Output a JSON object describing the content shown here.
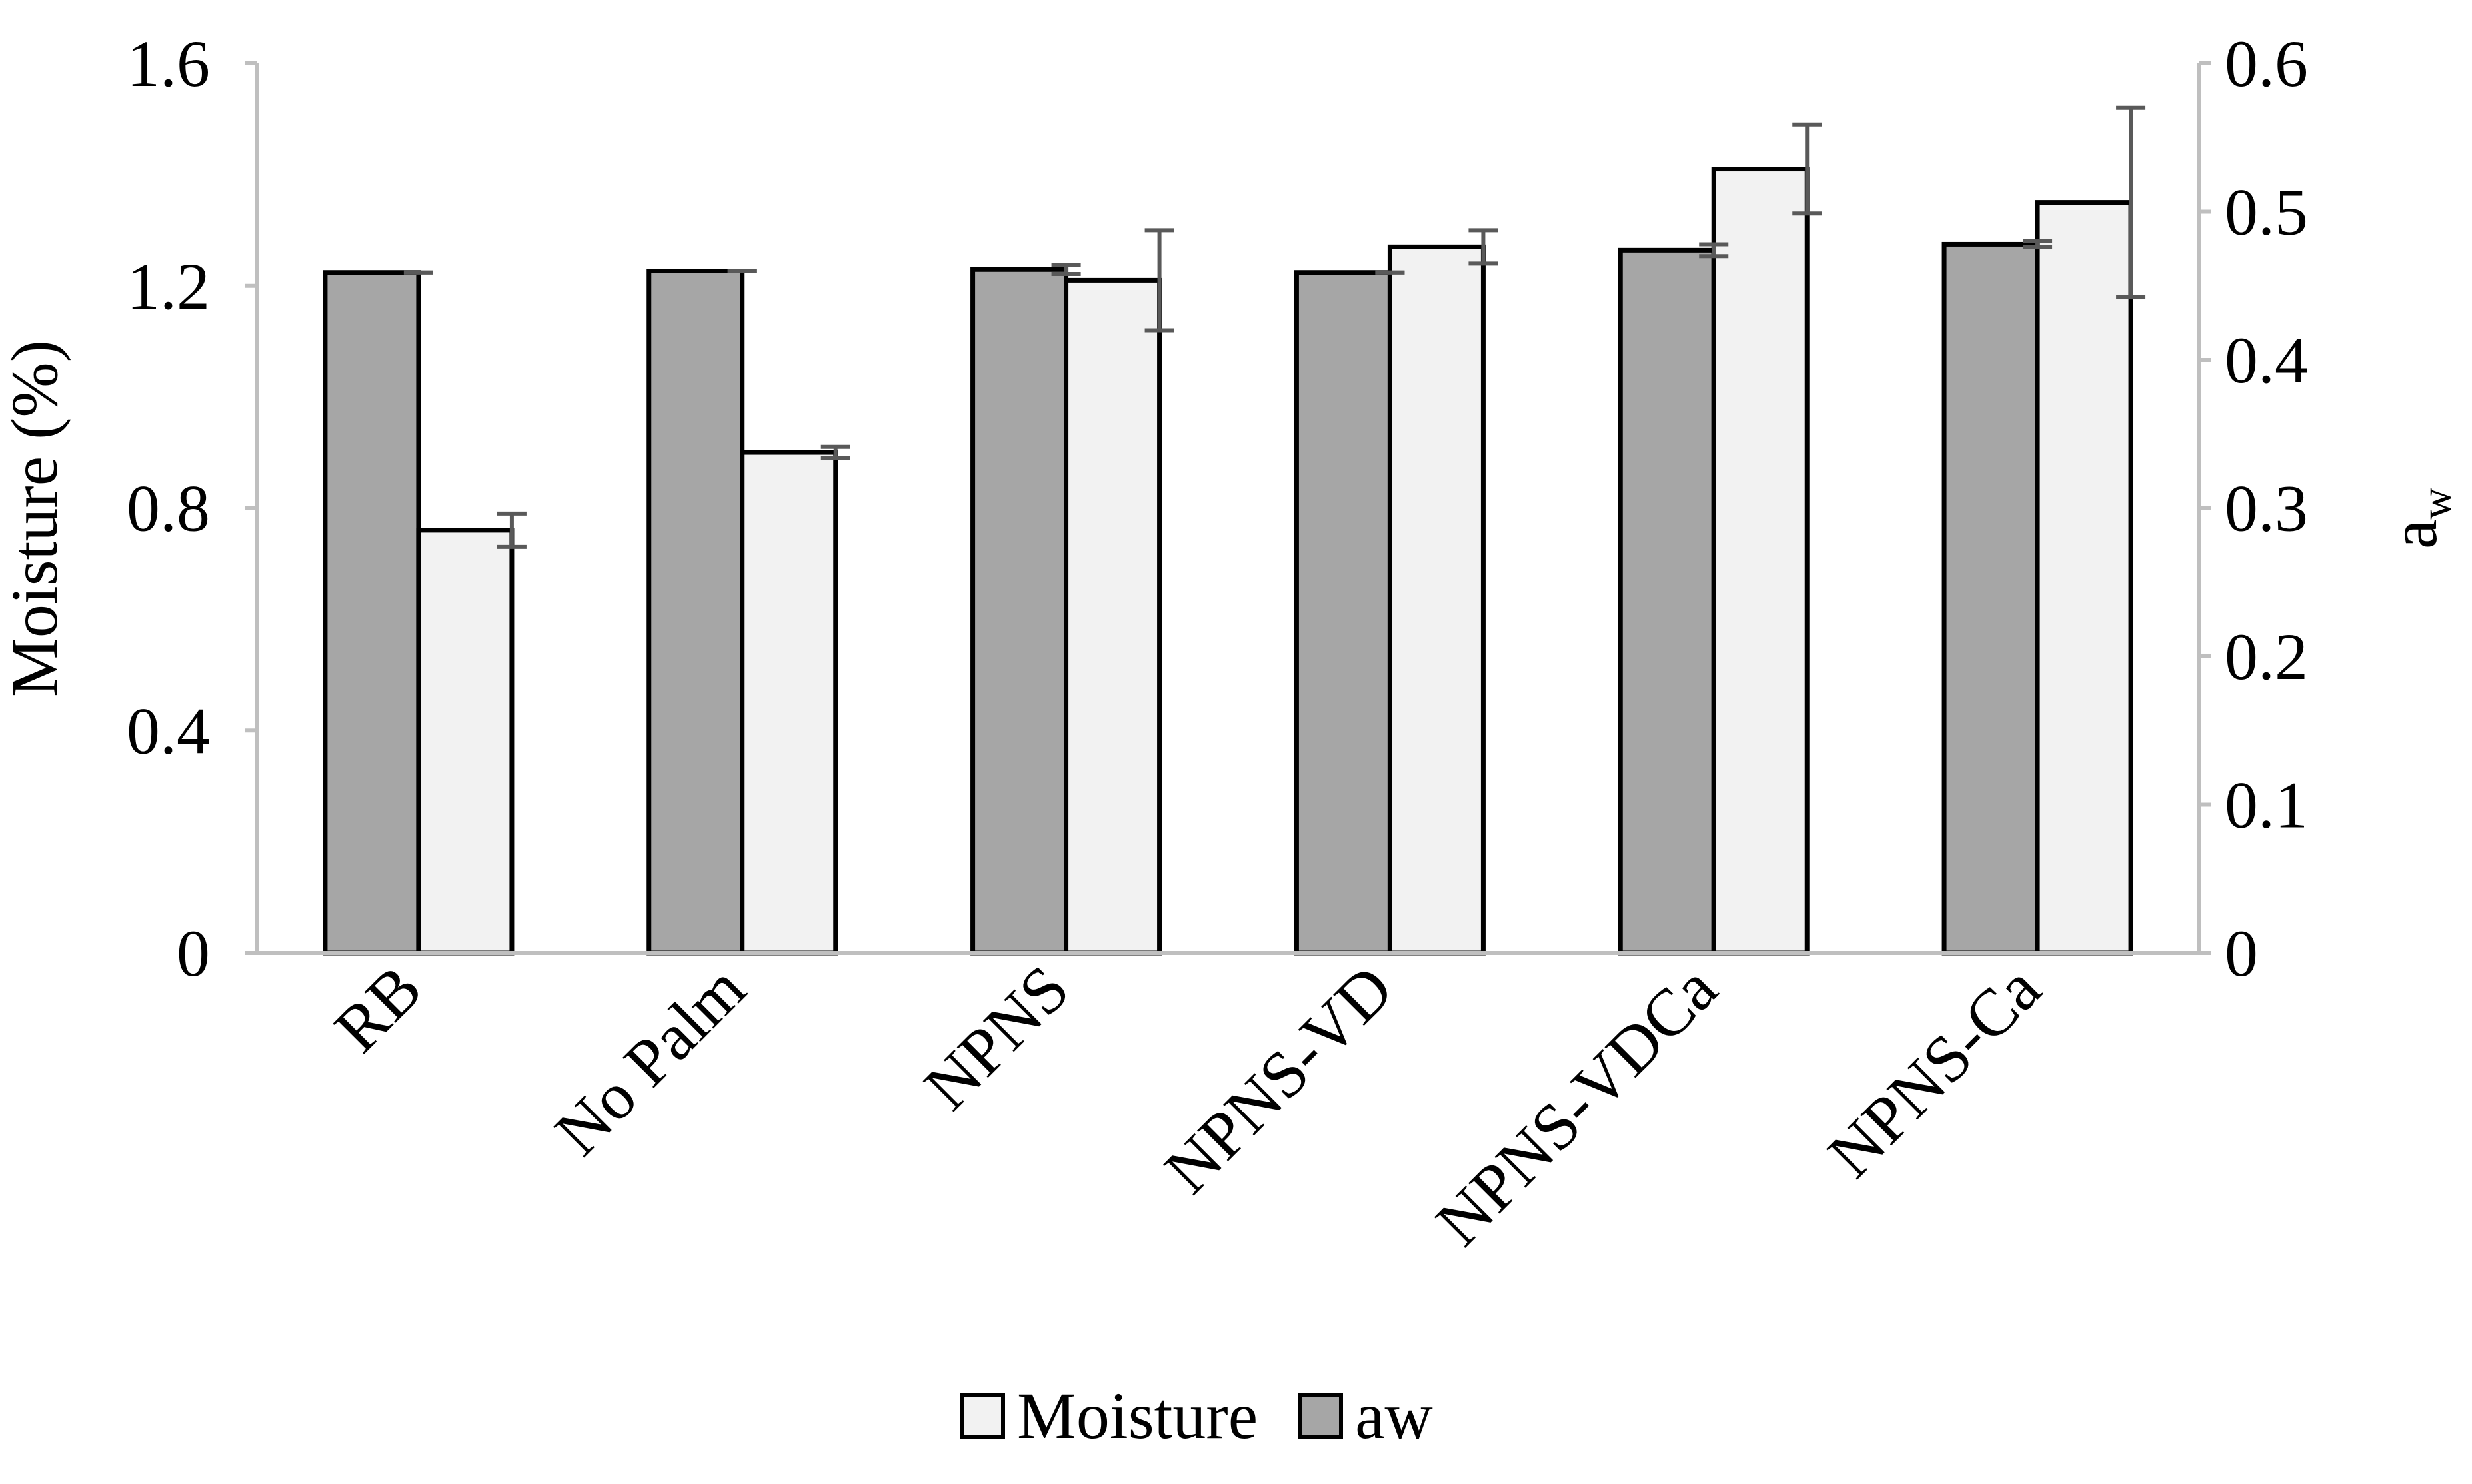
{
  "chart_data": {
    "type": "bar",
    "categories": [
      "RB",
      "No Palm",
      "NPNS",
      "NPNS-VD",
      "NPNS-VDCa",
      "NPNS-Ca"
    ],
    "series": [
      {
        "name": "aw",
        "axis": "right",
        "color": "#a6a6a6",
        "values": [
          0.459,
          0.46,
          0.461,
          0.459,
          0.474,
          0.478
        ],
        "errors": [
          0.0,
          0.0,
          0.003,
          0.0,
          0.004,
          0.002
        ]
      },
      {
        "name": "Moisture",
        "axis": "left",
        "color": "#f2f2f2",
        "values": [
          0.76,
          0.9,
          1.21,
          1.27,
          1.41,
          1.35
        ],
        "errors": [
          0.03,
          0.01,
          0.09,
          0.03,
          0.08,
          0.17
        ]
      }
    ],
    "y_left": {
      "label": "Moisture (%)",
      "ylim": [
        0,
        1.6
      ],
      "ticks": [
        "0",
        "0.4",
        "0.8",
        "1.2",
        "1.6"
      ]
    },
    "y_right": {
      "label_main": "a",
      "label_sub": "w",
      "ylim": [
        0,
        0.6
      ],
      "ticks": [
        "0",
        "0.1",
        "0.2",
        "0.3",
        "0.4",
        "0.5",
        "0.6"
      ]
    },
    "grid": false,
    "legend_position": "bottom",
    "legend": [
      {
        "label": "Moisture",
        "color": "#f2f2f2"
      },
      {
        "label": "aw",
        "color": "#a6a6a6"
      }
    ],
    "axis_color": "#bfbfbf",
    "error_bar_color": "#595959"
  }
}
